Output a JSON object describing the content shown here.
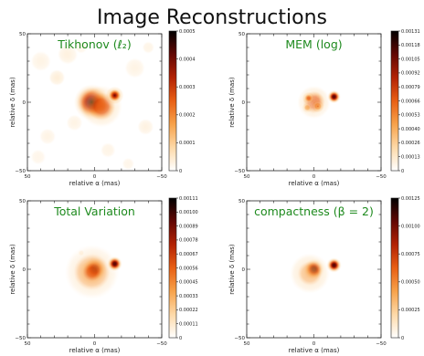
{
  "title": "Image Reconstructions",
  "colors": {
    "panel_title": "#1e8a1e",
    "axis": "#222222",
    "colormap": [
      "#ffffff",
      "#fdd9a8",
      "#f7a24a",
      "#e85f14",
      "#b32204",
      "#620703",
      "#000000"
    ]
  },
  "chart_data": [
    {
      "type": "heatmap",
      "title": "Tikhonov (ℓ₂)",
      "xlabel": "relative α (mas)",
      "ylabel": "relative δ (mas)",
      "xlim": [
        50,
        -50
      ],
      "ylim": [
        -50,
        50
      ],
      "x_ticks": [
        "50",
        "0",
        "−50"
      ],
      "y_ticks": [
        "50",
        "0",
        "−50"
      ],
      "colorbar_range": [
        0,
        0.0005
      ],
      "colorbar_ticks": [
        "0.0005",
        "0.0004",
        "0.0003",
        "0.0002",
        "0.0001",
        "0"
      ],
      "blobs": [
        {
          "x": 2,
          "y": 0,
          "amp": 0.00048,
          "sigma": 6
        },
        {
          "x": -5,
          "y": -3,
          "amp": 0.00028,
          "sigma": 7
        },
        {
          "x": -15,
          "y": 5,
          "amp": 0.00038,
          "sigma": 3
        },
        {
          "x": 28,
          "y": 18,
          "amp": 0.00012,
          "sigma": 4
        },
        {
          "x": 20,
          "y": 35,
          "amp": 0.0001,
          "sigma": 5
        },
        {
          "x": 40,
          "y": 30,
          "amp": 8e-05,
          "sigma": 5
        },
        {
          "x": -30,
          "y": 25,
          "amp": 8e-05,
          "sigma": 5
        },
        {
          "x": -38,
          "y": -18,
          "amp": 9e-05,
          "sigma": 4
        },
        {
          "x": 35,
          "y": -25,
          "amp": 8e-05,
          "sigma": 4
        },
        {
          "x": -10,
          "y": -35,
          "amp": 7e-05,
          "sigma": 5
        },
        {
          "x": 10,
          "y": 40,
          "amp": 6e-05,
          "sigma": 4
        },
        {
          "x": -40,
          "y": 40,
          "amp": 7e-05,
          "sigma": 4
        },
        {
          "x": 42,
          "y": -40,
          "amp": 6e-05,
          "sigma": 5
        },
        {
          "x": -25,
          "y": -45,
          "amp": 6e-05,
          "sigma": 4
        },
        {
          "x": 15,
          "y": -15,
          "amp": 8e-05,
          "sigma": 4
        }
      ]
    },
    {
      "type": "heatmap",
      "title": "MEM (log)",
      "xlabel": "relative α (mas)",
      "ylabel": "relative δ (mas)",
      "xlim": [
        50,
        -50
      ],
      "ylim": [
        -50,
        50
      ],
      "x_ticks": [
        "50",
        "0",
        "−50"
      ],
      "y_ticks": [
        "50",
        "0",
        "−50"
      ],
      "colorbar_range": [
        0,
        0.00131
      ],
      "colorbar_ticks": [
        "0.00131",
        "0.00118",
        "0.00105",
        "0.00092",
        "0.00079",
        "0.00066",
        "0.00053",
        "0.00040",
        "0.00026",
        "0.00013",
        "0"
      ],
      "blobs": [
        {
          "x": 0,
          "y": 0,
          "amp": 0.00075,
          "sigma": 5.5
        },
        {
          "x": 4,
          "y": 3,
          "amp": 0.0006,
          "sigma": 2.5
        },
        {
          "x": -3,
          "y": -3,
          "amp": 0.00055,
          "sigma": 2.5
        },
        {
          "x": 5,
          "y": -4,
          "amp": 0.0005,
          "sigma": 2
        },
        {
          "x": -15,
          "y": 4,
          "amp": 0.0012,
          "sigma": 2.2
        }
      ]
    },
    {
      "type": "heatmap",
      "title": "Total Variation",
      "xlabel": "relative α (mas)",
      "ylabel": "relative δ (mas)",
      "xlim": [
        50,
        -50
      ],
      "ylim": [
        -50,
        50
      ],
      "x_ticks": [
        "50",
        "0",
        "−50"
      ],
      "y_ticks": [
        "50",
        "0",
        "−50"
      ],
      "colorbar_range": [
        0,
        0.00111
      ],
      "colorbar_ticks": [
        "0.00111",
        "0.00100",
        "0.00089",
        "0.00078",
        "0.00067",
        "0.00056",
        "0.00045",
        "0.00033",
        "0.00022",
        "0.00011",
        "0"
      ],
      "blobs": [
        {
          "x": 0,
          "y": 0,
          "amp": 0.00095,
          "sigma": 4
        },
        {
          "x": 2,
          "y": -2,
          "amp": 0.00055,
          "sigma": 9
        },
        {
          "x": -15,
          "y": 4,
          "amp": 0.001,
          "sigma": 2.5
        },
        {
          "x": 25,
          "y": -5,
          "amp": 7e-05,
          "sigma": 4
        },
        {
          "x": 10,
          "y": 12,
          "amp": 0.00012,
          "sigma": 3
        }
      ]
    },
    {
      "type": "heatmap",
      "title": "compactness (β = 2)",
      "xlabel": "relative α (mas)",
      "ylabel": "relative δ (mas)",
      "xlim": [
        50,
        -50
      ],
      "ylim": [
        -50,
        50
      ],
      "x_ticks": [
        "50",
        "0",
        "−50"
      ],
      "y_ticks": [
        "50",
        "0",
        "−50"
      ],
      "colorbar_range": [
        0,
        0.00125
      ],
      "colorbar_ticks": [
        "0.00125",
        "0.00100",
        "0.00075",
        "0.00050",
        "0.00025",
        "0"
      ],
      "blobs": [
        {
          "x": 0,
          "y": 0,
          "amp": 0.0011,
          "sigma": 3.5
        },
        {
          "x": 3,
          "y": -3,
          "amp": 0.00045,
          "sigma": 8
        },
        {
          "x": -15,
          "y": 3,
          "amp": 0.0011,
          "sigma": 2.5
        },
        {
          "x": 15,
          "y": -15,
          "amp": 6e-05,
          "sigma": 3
        },
        {
          "x": 20,
          "y": 15,
          "amp": 5e-05,
          "sigma": 3
        }
      ]
    }
  ]
}
